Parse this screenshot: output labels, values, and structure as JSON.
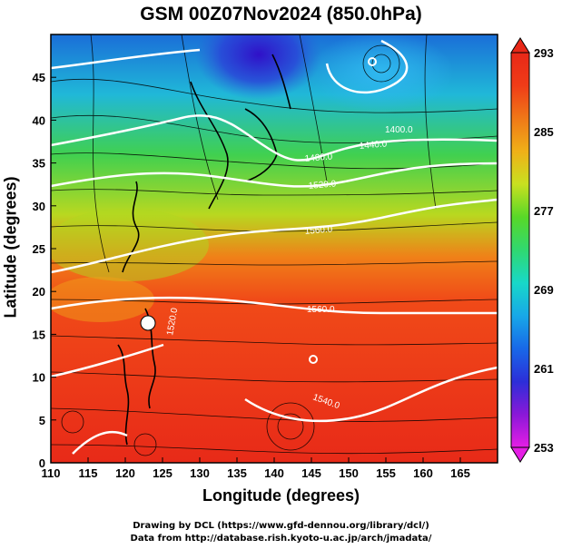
{
  "title": "GSM 00Z07Nov2024 (850.0hPa)",
  "x_axis": {
    "label": "Longitude (degrees)",
    "ticks": [
      "110",
      "115",
      "120",
      "125",
      "130",
      "135",
      "140",
      "145",
      "150",
      "155",
      "160",
      "165"
    ],
    "range": [
      110,
      170
    ]
  },
  "y_axis": {
    "label": "Latitude  (degrees)",
    "ticks": [
      "0",
      "5",
      "10",
      "15",
      "20",
      "25",
      "30",
      "35",
      "40",
      "45"
    ],
    "range": [
      0,
      50
    ]
  },
  "colorbar": {
    "ticks": [
      "253",
      "261",
      "269",
      "277",
      "285",
      "293"
    ],
    "range": [
      253,
      293
    ],
    "colors": [
      "#e51ee5",
      "#8a18d8",
      "#2c2ed8",
      "#1868e8",
      "#18a8e8",
      "#18d8c8",
      "#30d870",
      "#58d828",
      "#c8e020",
      "#f0b018",
      "#f07818",
      "#f03c18",
      "#e82818"
    ]
  },
  "contour_labels": [
    "1400.0",
    "1440.0",
    "1480.0",
    "1520.0",
    "1560.0",
    "1560.0",
    "1520.0",
    "1540.0"
  ],
  "credits": {
    "line1": "Drawing by DCL (https://www.gfd-dennou.org/library/dcl/)",
    "line2": "Data from http://database.rish.kyoto-u.ac.jp/arch/jmadata/"
  }
}
